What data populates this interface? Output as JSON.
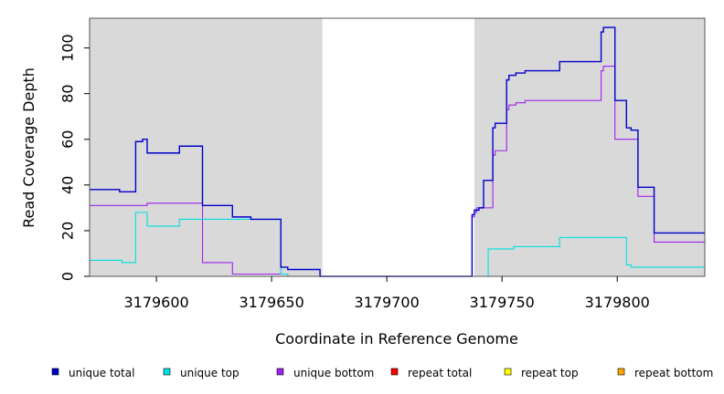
{
  "chart_data": {
    "type": "line",
    "xlabel": "Coordinate in Reference Genome",
    "ylabel": "Read Coverage Depth",
    "xlim": [
      3179571,
      3179838
    ],
    "ylim": [
      0,
      113
    ],
    "xticks": [
      3179600,
      3179650,
      3179700,
      3179750,
      3179800
    ],
    "xtick_labels": [
      "3179600",
      "3179650",
      "3179700",
      "3179750",
      "3179800"
    ],
    "yticks": [
      0,
      20,
      40,
      60,
      80,
      100
    ],
    "ytick_labels": [
      "0",
      "20",
      "40",
      "60",
      "80",
      "100"
    ],
    "grid": false,
    "shaded_regions": [
      {
        "x": [
          3179571,
          3179672
        ],
        "color": "#d9d9d9"
      },
      {
        "x": [
          3179738,
          3179838
        ],
        "color": "#d9d9d9"
      }
    ],
    "legend_position": "bottom",
    "series": [
      {
        "name": "unique total",
        "color": "#0000cc",
        "points": [
          [
            3179571,
            38
          ],
          [
            3179584,
            38
          ],
          [
            3179584,
            37
          ],
          [
            3179591,
            37
          ],
          [
            3179591,
            59
          ],
          [
            3179594,
            59
          ],
          [
            3179594,
            60
          ],
          [
            3179596,
            60
          ],
          [
            3179596,
            54
          ],
          [
            3179610,
            54
          ],
          [
            3179610,
            57
          ],
          [
            3179620,
            57
          ],
          [
            3179620,
            31
          ],
          [
            3179633,
            31
          ],
          [
            3179633,
            26
          ],
          [
            3179641,
            26
          ],
          [
            3179641,
            25
          ],
          [
            3179654,
            25
          ],
          [
            3179654,
            4
          ],
          [
            3179657,
            4
          ],
          [
            3179657,
            3
          ],
          [
            3179671,
            3
          ],
          [
            3179671,
            0
          ],
          [
            3179737,
            0
          ],
          [
            3179737,
            27
          ],
          [
            3179738,
            27
          ],
          [
            3179738,
            29
          ],
          [
            3179740,
            29
          ],
          [
            3179740,
            30
          ],
          [
            3179742,
            30
          ],
          [
            3179742,
            42
          ],
          [
            3179746,
            42
          ],
          [
            3179746,
            65
          ],
          [
            3179747,
            65
          ],
          [
            3179747,
            67
          ],
          [
            3179752,
            67
          ],
          [
            3179752,
            86
          ],
          [
            3179753,
            86
          ],
          [
            3179753,
            88
          ],
          [
            3179756,
            88
          ],
          [
            3179756,
            89
          ],
          [
            3179760,
            89
          ],
          [
            3179760,
            90
          ],
          [
            3179775,
            90
          ],
          [
            3179775,
            94
          ],
          [
            3179793,
            94
          ],
          [
            3179793,
            107
          ],
          [
            3179794,
            107
          ],
          [
            3179794,
            109
          ],
          [
            3179799,
            109
          ],
          [
            3179799,
            77
          ],
          [
            3179804,
            77
          ],
          [
            3179804,
            65
          ],
          [
            3179806,
            65
          ],
          [
            3179806,
            64
          ],
          [
            3179809,
            64
          ],
          [
            3179809,
            39
          ],
          [
            3179816,
            39
          ],
          [
            3179816,
            19
          ],
          [
            3179838,
            19
          ]
        ]
      },
      {
        "name": "unique top",
        "color": "#00e0e0",
        "points": [
          [
            3179571,
            7
          ],
          [
            3179585,
            7
          ],
          [
            3179585,
            6
          ],
          [
            3179591,
            6
          ],
          [
            3179591,
            28
          ],
          [
            3179596,
            28
          ],
          [
            3179596,
            22
          ],
          [
            3179610,
            22
          ],
          [
            3179610,
            25
          ],
          [
            3179654,
            25
          ],
          [
            3179654,
            1
          ],
          [
            3179657,
            1
          ],
          [
            3179657,
            0
          ],
          [
            3179744,
            0
          ],
          [
            3179744,
            12
          ],
          [
            3179755,
            12
          ],
          [
            3179755,
            13
          ],
          [
            3179775,
            13
          ],
          [
            3179775,
            17
          ],
          [
            3179804,
            17
          ],
          [
            3179804,
            5
          ],
          [
            3179806,
            5
          ],
          [
            3179806,
            4
          ],
          [
            3179838,
            4
          ]
        ]
      },
      {
        "name": "unique bottom",
        "color": "#a020f0",
        "points": [
          [
            3179571,
            31
          ],
          [
            3179596,
            31
          ],
          [
            3179596,
            32
          ],
          [
            3179620,
            32
          ],
          [
            3179620,
            6
          ],
          [
            3179633,
            6
          ],
          [
            3179633,
            1
          ],
          [
            3179657,
            1
          ],
          [
            3179657,
            0
          ],
          [
            3179737,
            0
          ],
          [
            3179737,
            26
          ],
          [
            3179738,
            26
          ],
          [
            3179738,
            28
          ],
          [
            3179739,
            28
          ],
          [
            3179739,
            30
          ],
          [
            3179746,
            30
          ],
          [
            3179746,
            53
          ],
          [
            3179747,
            53
          ],
          [
            3179747,
            55
          ],
          [
            3179752,
            55
          ],
          [
            3179752,
            73
          ],
          [
            3179753,
            73
          ],
          [
            3179753,
            75
          ],
          [
            3179756,
            75
          ],
          [
            3179756,
            76
          ],
          [
            3179760,
            76
          ],
          [
            3179760,
            77
          ],
          [
            3179793,
            77
          ],
          [
            3179793,
            90
          ],
          [
            3179794,
            90
          ],
          [
            3179794,
            92
          ],
          [
            3179799,
            92
          ],
          [
            3179799,
            60
          ],
          [
            3179809,
            60
          ],
          [
            3179809,
            35
          ],
          [
            3179816,
            35
          ],
          [
            3179816,
            15
          ],
          [
            3179838,
            15
          ]
        ]
      },
      {
        "name": "repeat total",
        "color": "#ff0000",
        "points": [
          [
            3179571,
            0
          ],
          [
            3179838,
            0
          ]
        ]
      },
      {
        "name": "repeat top",
        "color": "#ffff00",
        "points": [
          [
            3179571,
            0
          ],
          [
            3179838,
            0
          ]
        ]
      },
      {
        "name": "repeat bottom",
        "color": "#ffa500",
        "points": [
          [
            3179571,
            0
          ],
          [
            3179838,
            0
          ]
        ]
      }
    ]
  }
}
